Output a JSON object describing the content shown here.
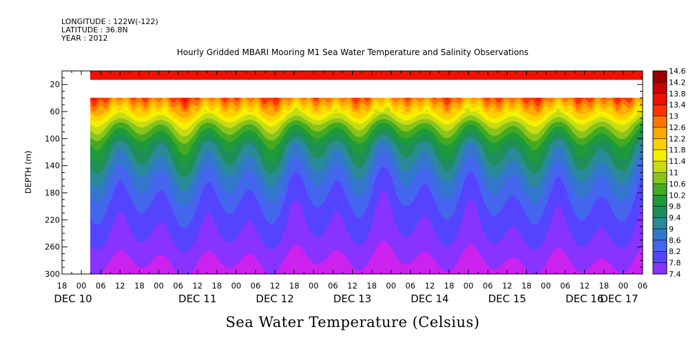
{
  "header": {
    "longitude": "LONGITUDE : 122W(-122)",
    "latitude": "LATITUDE : 36.8N",
    "year": "YEAR : 2012"
  },
  "chart_data": {
    "type": "heatmap",
    "title": "Hourly Gridded MBARI Mooring M1 Sea Water Temperature and Salinity Observations",
    "xlabel": "Sea Water Temperature (Celsius)",
    "ylabel": "DEPTH (m)",
    "x_unit": "hours",
    "xlim": [
      -18,
      162
    ],
    "ylim": [
      300,
      0
    ],
    "y_inverted": true,
    "y_ticks": [
      20,
      60,
      100,
      140,
      180,
      220,
      260,
      300
    ],
    "hour_ticks": [
      "18",
      "00",
      "06",
      "12",
      "18",
      "00",
      "06",
      "12",
      "18",
      "00",
      "06",
      "12",
      "18",
      "00",
      "06",
      "12",
      "18",
      "00",
      "06",
      "12",
      "18",
      "00",
      "06",
      "12",
      "18",
      "00",
      "06",
      "12",
      "18",
      "00",
      "06"
    ],
    "day_labels": [
      "DEC 10",
      "DEC 11",
      "DEC 12",
      "DEC 13",
      "DEC 14",
      "DEC 15",
      "DEC 16",
      "DEC 17"
    ],
    "data_start_hour": 0,
    "data_end_hour": 156,
    "gap_depth_range": [
      13,
      40
    ],
    "colorbar": {
      "labels": [
        "14.6",
        "14.2",
        "13.8",
        "13.4",
        "13",
        "12.6",
        "12.2",
        "11.8",
        "11.4",
        "11",
        "10.6",
        "10.2",
        "9.8",
        "9.4",
        "9",
        "8.6",
        "8.2",
        "7.8",
        "7.4"
      ],
      "min": 7.4,
      "max": 14.6,
      "colors": [
        "#cc22ee",
        "#8833ff",
        "#5544ff",
        "#4466ee",
        "#3377cc",
        "#2a8a9a",
        "#1f8f5a",
        "#1e9a3a",
        "#44aa22",
        "#88c41c",
        "#c8dc14",
        "#f4f000",
        "#ffd000",
        "#ffaa00",
        "#ff7700",
        "#ff3300",
        "#ee1100",
        "#cc0000",
        "#990000"
      ]
    },
    "depth_profile": [
      {
        "depth": 10,
        "temp": 13.9
      },
      {
        "depth": 13,
        "temp": 13.9
      },
      {
        "depth": 40,
        "temp": 13.3
      },
      {
        "depth": 55,
        "temp": 12.5
      },
      {
        "depth": 70,
        "temp": 11.8
      },
      {
        "depth": 80,
        "temp": 11.2
      },
      {
        "depth": 95,
        "temp": 10.6
      },
      {
        "depth": 110,
        "temp": 10.0
      },
      {
        "depth": 130,
        "temp": 9.6
      },
      {
        "depth": 160,
        "temp": 9.0
      },
      {
        "depth": 200,
        "temp": 8.5
      },
      {
        "depth": 250,
        "temp": 8.1
      },
      {
        "depth": 280,
        "temp": 7.8
      },
      {
        "depth": 300,
        "temp": 7.6
      }
    ]
  }
}
